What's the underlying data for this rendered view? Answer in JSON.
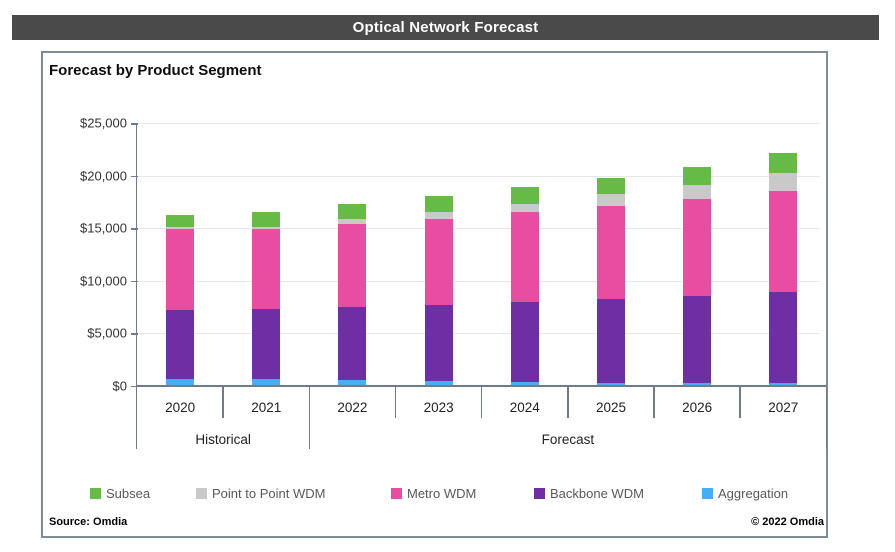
{
  "window": {
    "title": "Optical Network Forecast"
  },
  "chart": {
    "heading": "Forecast by Product Segment"
  },
  "chart_data": {
    "type": "bar",
    "stacked": true,
    "title": "Forecast by Product Segment",
    "categories": [
      "2020",
      "2021",
      "2022",
      "2023",
      "2024",
      "2025",
      "2026",
      "2027"
    ],
    "category_groups": [
      {
        "label": "Historical",
        "start": 0,
        "end": 1
      },
      {
        "label": "Forecast",
        "start": 2,
        "end": 7
      }
    ],
    "series": [
      {
        "name": "Aggregation",
        "color": "#47aef3",
        "values": [
          600,
          650,
          550,
          400,
          300,
          250,
          250,
          250
        ]
      },
      {
        "name": "Backbone WDM",
        "color": "#6e2fa5",
        "values": [
          6600,
          6600,
          6900,
          7250,
          7700,
          7950,
          8300,
          8700
        ]
      },
      {
        "name": "Metro WDM",
        "color": "#e94da1",
        "values": [
          7750,
          7650,
          7900,
          8200,
          8500,
          8900,
          9250,
          9600
        ]
      },
      {
        "name": "Point to Point WDM",
        "color": "#c9c9c9",
        "values": [
          100,
          200,
          550,
          700,
          750,
          1100,
          1250,
          1700
        ]
      },
      {
        "name": "Subsea",
        "color": "#66bb46",
        "values": [
          1150,
          1400,
          1400,
          1500,
          1650,
          1600,
          1750,
          1850
        ]
      }
    ],
    "legend": [
      {
        "label": "Subsea",
        "color": "#66bb46"
      },
      {
        "label": "Point to Point WDM",
        "color": "#c9c9c9"
      },
      {
        "label": "Metro WDM",
        "color": "#e94da1"
      },
      {
        "label": "Backbone WDM",
        "color": "#6e2fa5"
      },
      {
        "label": "Aggregation",
        "color": "#47aef3"
      }
    ],
    "ylim": [
      0,
      25000
    ],
    "y_tick_step": 5000,
    "y_tick_labels": [
      "$0",
      "$5,000",
      "$10,000",
      "$15,000",
      "$20,000",
      "$25,000"
    ],
    "grid": true,
    "legend_position": "bottom"
  },
  "footer": {
    "source": "Source: Omdia",
    "copyright": "© 2022 Omdia"
  },
  "colors": {
    "titlebar_bg": "#4a4a4a",
    "titlebar_text": "#ffffff",
    "axis": "#6e7b8a",
    "gridline": "#e8e8e8",
    "box_border": "#7e8b99",
    "legend_text": "#595959"
  }
}
